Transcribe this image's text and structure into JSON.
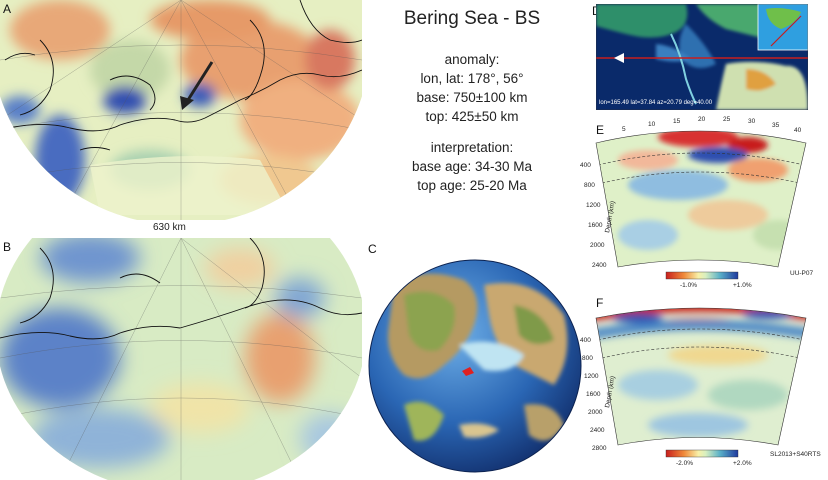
{
  "info": {
    "title": "Bering Sea - BS",
    "anomaly_heading": "anomaly:",
    "lonlat": "lon, lat: 178°, 56°",
    "base": "base: 750±100 km",
    "top": "top: 425±50 km",
    "interpretation_heading": "interpretation:",
    "base_age": "base age: 34-30 Ma",
    "top_age": "top age: 25-20 Ma"
  },
  "panels": {
    "A": "A",
    "B": "B",
    "C": "C",
    "D": "D",
    "E": "E",
    "F": "F"
  },
  "scale_bar": "630 km",
  "map_d": {
    "caption": "lon=165.49 lat=37.84 az=20.79 deg=40.00"
  },
  "section_e": {
    "top_ticks": [
      "5",
      "10",
      "15",
      "20",
      "25",
      "30",
      "35",
      "40"
    ],
    "depth_ticks": [
      "400",
      "800",
      "1200",
      "1600",
      "2000",
      "2400"
    ],
    "ylabel": "Depth (km)",
    "cb_min": "-1.0%",
    "cb_max": "+1.0%",
    "model": "UU-P07"
  },
  "section_f": {
    "depth_ticks": [
      "400",
      "800",
      "1200",
      "1600",
      "2000",
      "2400",
      "2800"
    ],
    "ylabel": "Depth (km)",
    "cb_min": "-2.0%",
    "cb_max": "+2.0%",
    "model": "SL2013+S40RTS"
  },
  "colors": {
    "fast": "#1f3a9e",
    "slow": "#c8201e",
    "neutral": "#dff0c8"
  }
}
